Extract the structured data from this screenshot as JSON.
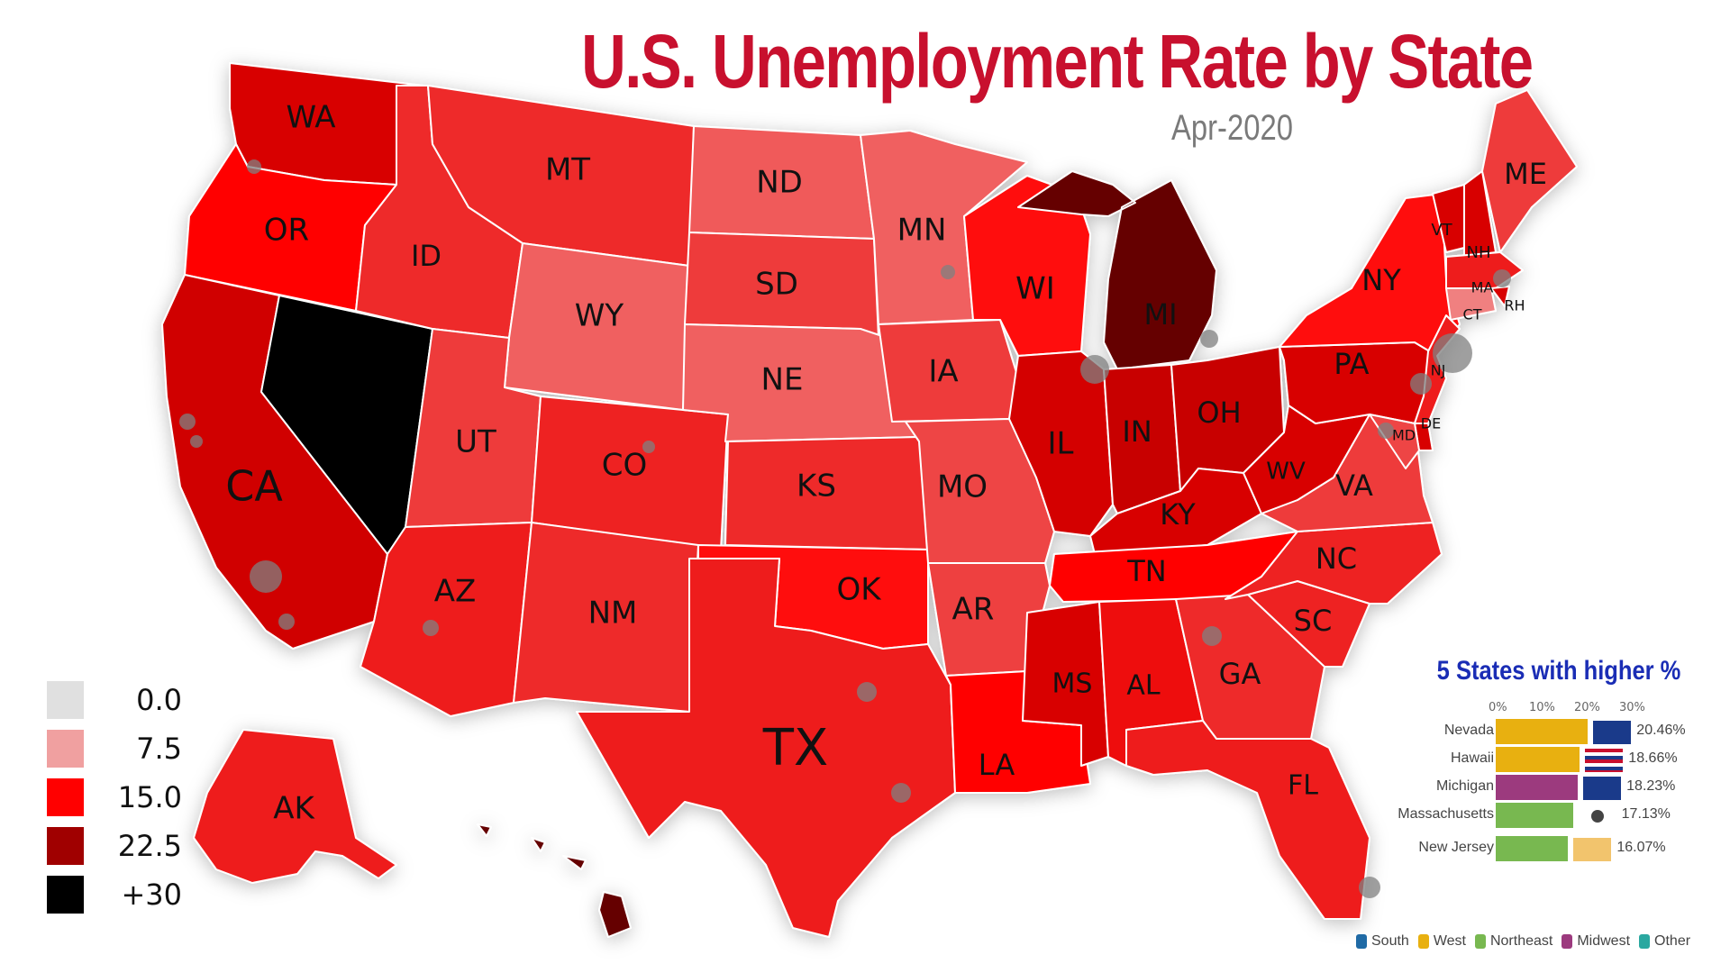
{
  "title": "U.S. Unemployment Rate by State",
  "date": "Apr-2020",
  "colors": {
    "level_0": "#e0e0e0",
    "level_7_5": "#f0a0a0",
    "level_15": "#ff0000",
    "level_22_5": "#b00000",
    "level_30": "#000000",
    "title": "#c8102e",
    "rank_title": "#1a2db5"
  },
  "legend": [
    {
      "label": "0.0",
      "color": "#e0e0e0"
    },
    {
      "label": "7.5",
      "color": "#f0a0a0"
    },
    {
      "label": "15.0",
      "color": "#ff0000"
    },
    {
      "label": "22.5",
      "color": "#a00000"
    },
    {
      "label": "+30",
      "color": "#000000"
    }
  ],
  "states": [
    {
      "abbr": "WA"
    },
    {
      "abbr": "OR"
    },
    {
      "abbr": "CA"
    },
    {
      "abbr": "ID"
    },
    {
      "abbr": "MT"
    },
    {
      "abbr": "WY"
    },
    {
      "abbr": "UT"
    },
    {
      "abbr": "CO"
    },
    {
      "abbr": "AZ"
    },
    {
      "abbr": "NM"
    },
    {
      "abbr": "ND"
    },
    {
      "abbr": "SD"
    },
    {
      "abbr": "NE"
    },
    {
      "abbr": "KS"
    },
    {
      "abbr": "OK"
    },
    {
      "abbr": "TX"
    },
    {
      "abbr": "MN"
    },
    {
      "abbr": "IA"
    },
    {
      "abbr": "MO"
    },
    {
      "abbr": "AR"
    },
    {
      "abbr": "LA"
    },
    {
      "abbr": "WI"
    },
    {
      "abbr": "IL"
    },
    {
      "abbr": "MI"
    },
    {
      "abbr": "IN"
    },
    {
      "abbr": "OH"
    },
    {
      "abbr": "KY"
    },
    {
      "abbr": "TN"
    },
    {
      "abbr": "MS"
    },
    {
      "abbr": "AL"
    },
    {
      "abbr": "GA"
    },
    {
      "abbr": "FL"
    },
    {
      "abbr": "SC"
    },
    {
      "abbr": "NC"
    },
    {
      "abbr": "VA"
    },
    {
      "abbr": "WV"
    },
    {
      "abbr": "PA"
    },
    {
      "abbr": "NY"
    },
    {
      "abbr": "ME"
    },
    {
      "abbr": "VT"
    },
    {
      "abbr": "NH"
    },
    {
      "abbr": "MA"
    },
    {
      "abbr": "RH"
    },
    {
      "abbr": "CT"
    },
    {
      "abbr": "NJ"
    },
    {
      "abbr": "DE"
    },
    {
      "abbr": "MD"
    },
    {
      "abbr": "AK"
    }
  ],
  "ranking": {
    "title": "5 States with higher %",
    "axis": [
      "0%",
      "10%",
      "20%",
      "30%"
    ],
    "rows": [
      {
        "name": "Nevada",
        "value": 20.46,
        "label": "20.46%",
        "region": "West",
        "color": "#e8b010"
      },
      {
        "name": "Hawaii",
        "value": 18.66,
        "label": "18.66%",
        "region": "West",
        "color": "#e8b010"
      },
      {
        "name": "Michigan",
        "value": 18.23,
        "label": "18.23%",
        "region": "Midwest",
        "color": "#9c3a7e"
      },
      {
        "name": "Massachusetts",
        "value": 17.13,
        "label": "17.13%",
        "region": "Northeast",
        "color": "#78b850"
      },
      {
        "name": "New Jersey",
        "value": 16.07,
        "label": "16.07%",
        "region": "Northeast",
        "color": "#78b850"
      }
    ]
  },
  "regions": [
    {
      "name": "South",
      "color": "#1f6aa5"
    },
    {
      "name": "West",
      "color": "#e8b010"
    },
    {
      "name": "Northeast",
      "color": "#78b850"
    },
    {
      "name": "Midwest",
      "color": "#9c3a7e"
    },
    {
      "name": "Other",
      "color": "#2aa8a0"
    }
  ]
}
